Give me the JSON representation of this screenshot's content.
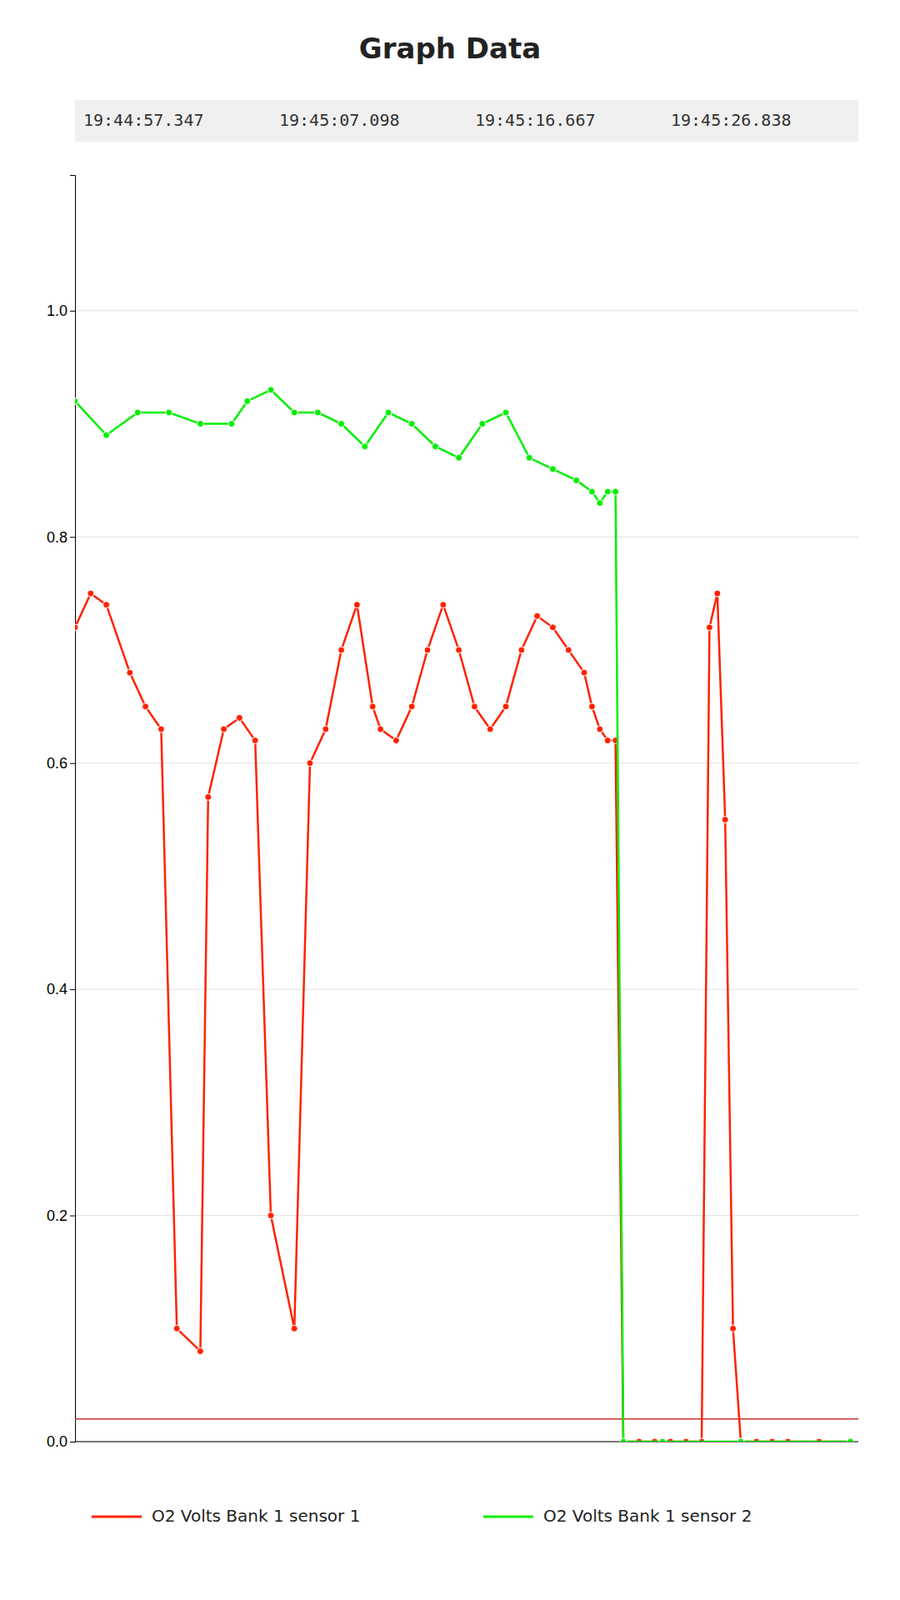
{
  "chart_data": {
    "type": "line",
    "title": "Graph Data",
    "annotations": [
      "19:44:57.347",
      "19:45:07.098",
      "19:45:16.667",
      "19:45:26.838"
    ],
    "xlim": [
      0,
      100
    ],
    "ylim": [
      0.0,
      1.12
    ],
    "yticks": [
      {
        "value": 0,
        "label": "0.0"
      },
      0.2,
      0.4,
      0.6,
      0.8,
      {
        "value": 1,
        "label": "1.0"
      }
    ],
    "grid": true,
    "tick_labels": "y",
    "legend": "bottom",
    "hlines": [
      {
        "value": 0.02,
        "color": "#cc3333"
      }
    ],
    "series": [
      {
        "name": "O2 Volts Bank 1 sensor 1",
        "color": "#ff2200",
        "marker": "circle",
        "x": [
          0,
          2,
          4,
          7,
          9,
          11,
          13,
          16,
          17,
          19,
          21,
          23,
          25,
          28,
          30,
          32,
          34,
          36,
          38,
          39,
          41,
          43,
          45,
          47,
          49,
          51,
          53,
          55,
          57,
          59,
          61,
          63,
          65,
          66,
          67,
          68,
          69,
          70,
          72,
          74,
          76,
          78,
          80,
          81,
          82,
          83,
          84,
          85,
          87,
          89,
          91,
          95,
          99
        ],
        "values": [
          0.72,
          0.75,
          0.74,
          0.68,
          0.65,
          0.63,
          0.1,
          0.08,
          0.57,
          0.63,
          0.64,
          0.62,
          0.2,
          0.1,
          0.6,
          0.63,
          0.7,
          0.74,
          0.65,
          0.63,
          0.62,
          0.65,
          0.7,
          0.74,
          0.7,
          0.65,
          0.63,
          0.65,
          0.7,
          0.73,
          0.72,
          0.7,
          0.68,
          0.65,
          0.63,
          0.62,
          0.62,
          0.0,
          0.0,
          0.0,
          0.0,
          0.0,
          0.0,
          0.72,
          0.75,
          0.55,
          0.1,
          0.0,
          0.0,
          0.0,
          0.0,
          0.0,
          0.0
        ]
      },
      {
        "name": "O2 Volts Bank 1 sensor 2",
        "color": "#00ee00",
        "marker": "circle",
        "x": [
          0,
          4,
          8,
          12,
          16,
          20,
          22,
          25,
          28,
          31,
          34,
          37,
          40,
          43,
          46,
          49,
          52,
          55,
          58,
          61,
          64,
          66,
          67,
          68,
          69,
          70,
          75,
          85,
          99
        ],
        "values": [
          0.92,
          0.89,
          0.91,
          0.91,
          0.9,
          0.9,
          0.92,
          0.93,
          0.91,
          0.91,
          0.9,
          0.88,
          0.91,
          0.9,
          0.88,
          0.87,
          0.9,
          0.91,
          0.87,
          0.86,
          0.85,
          0.84,
          0.83,
          0.84,
          0.84,
          0.0,
          0.0,
          0.0,
          0.0
        ]
      }
    ]
  }
}
